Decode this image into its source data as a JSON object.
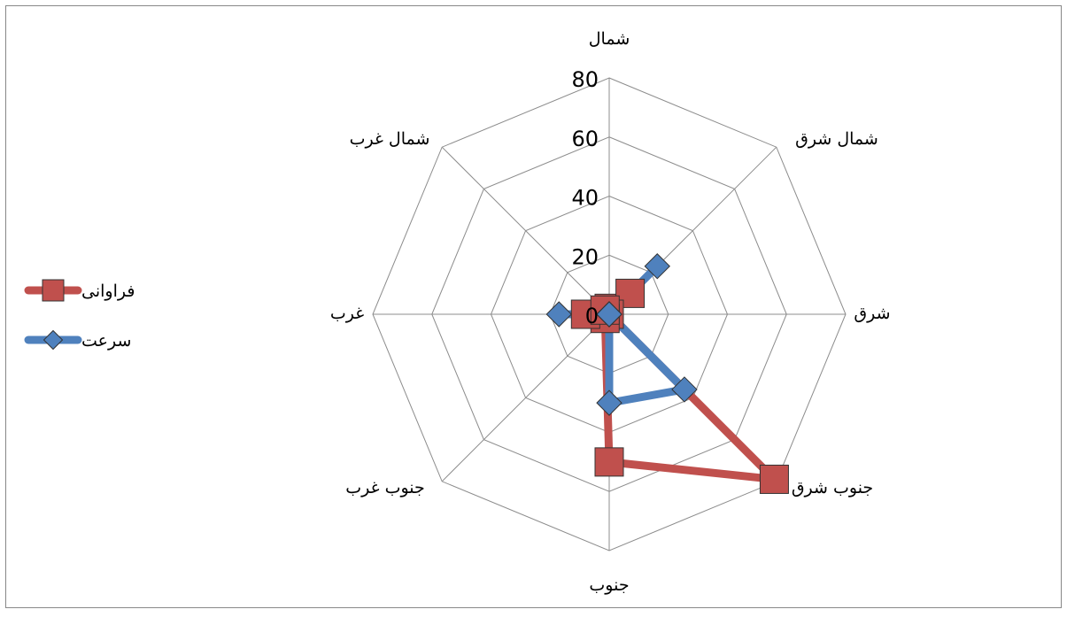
{
  "chart_data": {
    "type": "radar",
    "categories": [
      "شمال",
      "شمال شرق",
      "شرق",
      "جنوب شرق",
      "جنوب",
      "جنوب غرب",
      "غرب",
      "شمال غرب"
    ],
    "series": [
      {
        "name": "فراوانی",
        "color": "#c0504d",
        "marker": "square",
        "values": [
          2,
          10,
          0,
          79,
          50,
          2,
          8,
          2
        ]
      },
      {
        "name": "سرعت",
        "color": "#4f81bd",
        "marker": "diamond",
        "values": [
          0,
          23,
          0,
          36,
          30,
          0,
          17,
          0
        ]
      }
    ],
    "ylim": [
      0,
      80
    ],
    "yticks": [
      0,
      20,
      40,
      60,
      80
    ],
    "grid": true,
    "legend": "left"
  }
}
